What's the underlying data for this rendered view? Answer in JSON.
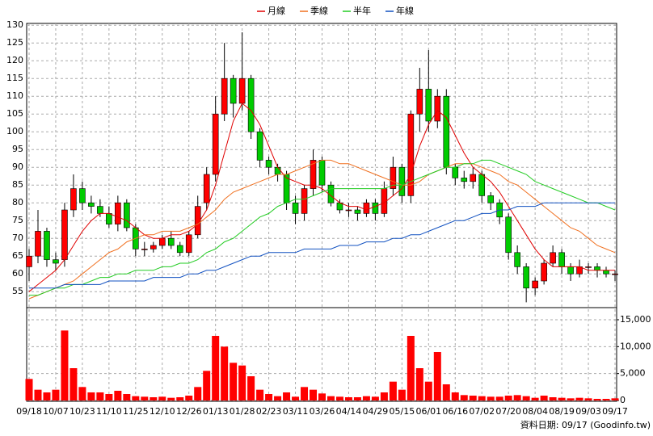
{
  "chart_data": {
    "type": "candlestick",
    "categories": [
      "09/18",
      null,
      null,
      "10/07",
      null,
      null,
      "10/23",
      null,
      null,
      "11/10",
      null,
      null,
      "11/25",
      null,
      null,
      "12/10",
      null,
      null,
      "12/26",
      null,
      null,
      "01/13",
      null,
      null,
      "01/28",
      null,
      null,
      "02/23",
      null,
      null,
      "03/11",
      null,
      null,
      "03/26",
      null,
      null,
      "04/14",
      null,
      null,
      "04/29",
      null,
      null,
      "05/15",
      null,
      null,
      "06/01",
      null,
      null,
      "06/16",
      null,
      null,
      "07/02",
      null,
      null,
      "07/20",
      null,
      null,
      "08/04",
      null,
      null,
      "08/19",
      null,
      null,
      "09/03",
      null,
      null,
      "09/17"
    ],
    "open": [
      62,
      65,
      72,
      64,
      64,
      78,
      84,
      80,
      79,
      77,
      74,
      80,
      73,
      67,
      67,
      68,
      70,
      68,
      66,
      71,
      80,
      88,
      105,
      115,
      108,
      115,
      100,
      92,
      90,
      88,
      80,
      77,
      84,
      92,
      85,
      80,
      78,
      78,
      77,
      80,
      77,
      84,
      90,
      82,
      105,
      112,
      103,
      110,
      90,
      87,
      86,
      88,
      82,
      80,
      76,
      66,
      62,
      56,
      58,
      63,
      66,
      62,
      60,
      62,
      62,
      61,
      60
    ],
    "high": [
      67,
      78,
      73,
      66,
      80,
      88,
      86,
      82,
      81,
      79,
      82,
      81,
      74,
      69,
      69,
      71,
      72,
      69,
      72,
      82,
      90,
      110,
      125,
      116,
      128,
      116,
      101,
      93,
      91,
      89,
      82,
      85,
      95,
      93,
      86,
      81,
      80,
      79,
      81,
      81,
      86,
      93,
      91,
      106,
      118,
      123,
      112,
      112,
      91,
      89,
      90,
      89,
      83,
      81,
      77,
      68,
      63,
      59,
      64,
      68,
      67,
      63,
      64,
      63,
      63,
      62,
      61
    ],
    "low": [
      58,
      63,
      62,
      61,
      62,
      76,
      78,
      77,
      76,
      73,
      72,
      72,
      65,
      65,
      66,
      67,
      67,
      65,
      65,
      70,
      78,
      86,
      103,
      104,
      106,
      98,
      90,
      88,
      86,
      78,
      74,
      75,
      82,
      83,
      79,
      77,
      76,
      75,
      76,
      75,
      76,
      82,
      80,
      80,
      100,
      100,
      101,
      88,
      85,
      84,
      84,
      80,
      78,
      74,
      64,
      60,
      52,
      54,
      57,
      62,
      60,
      58,
      59,
      60,
      59,
      59,
      58
    ],
    "close": [
      65,
      72,
      64,
      63,
      78,
      84,
      80,
      79,
      77,
      74,
      80,
      73,
      67,
      67,
      68,
      70,
      68,
      66,
      71,
      79,
      88,
      105,
      115,
      108,
      115,
      100,
      92,
      90,
      88,
      80,
      77,
      84,
      92,
      85,
      80,
      78,
      78,
      77,
      80,
      77,
      84,
      90,
      82,
      105,
      112,
      103,
      110,
      90,
      87,
      86,
      88,
      82,
      80,
      76,
      66,
      62,
      56,
      58,
      63,
      66,
      62,
      60,
      62,
      62,
      61,
      60,
      60
    ],
    "up_color": "#ff0000",
    "down_color": "#00cc00",
    "series": [
      {
        "name": "月線",
        "color": "#e00000",
        "values": [
          55,
          57,
          59,
          61,
          64,
          68,
          72,
          75,
          77,
          77,
          76,
          75,
          73,
          71,
          70,
          70,
          71,
          71,
          72,
          74,
          78,
          85,
          94,
          103,
          108,
          106,
          102,
          96,
          90,
          87,
          86,
          85,
          85,
          84,
          82,
          80,
          79,
          79,
          78,
          79,
          80,
          82,
          84,
          88,
          96,
          102,
          106,
          104,
          99,
          94,
          90,
          88,
          86,
          83,
          79,
          75,
          71,
          67,
          64,
          62,
          62,
          62,
          62,
          61,
          61,
          61,
          61
        ]
      },
      {
        "name": "季線",
        "color": "#f07020",
        "values": [
          53,
          54,
          55,
          56,
          57,
          58,
          60,
          62,
          64,
          66,
          67,
          69,
          70,
          71,
          71,
          72,
          72,
          72,
          73,
          74,
          76,
          78,
          81,
          83,
          84,
          85,
          86,
          87,
          88,
          88,
          89,
          90,
          91,
          92,
          92,
          91,
          91,
          90,
          89,
          88,
          87,
          86,
          85,
          85,
          86,
          88,
          89,
          90,
          91,
          91,
          91,
          90,
          89,
          88,
          86,
          85,
          83,
          81,
          79,
          77,
          75,
          73,
          72,
          70,
          68,
          67,
          66
        ]
      },
      {
        "name": "半年",
        "color": "#22cc22",
        "values": [
          54,
          54,
          55,
          56,
          56,
          57,
          57,
          58,
          59,
          59,
          60,
          60,
          61,
          61,
          61,
          62,
          62,
          63,
          63,
          64,
          66,
          67,
          69,
          70,
          72,
          74,
          76,
          77,
          79,
          80,
          81,
          81,
          82,
          83,
          84,
          84,
          84,
          84,
          84,
          84,
          84,
          85,
          85,
          86,
          87,
          88,
          89,
          90,
          90,
          91,
          91,
          92,
          92,
          91,
          90,
          89,
          88,
          86,
          85,
          84,
          83,
          82,
          81,
          80,
          80,
          79,
          78
        ]
      },
      {
        "name": "年線",
        "color": "#1050c0",
        "values": [
          56,
          56,
          56,
          56,
          57,
          57,
          57,
          57,
          57,
          58,
          58,
          58,
          58,
          58,
          59,
          59,
          59,
          59,
          60,
          60,
          61,
          61,
          62,
          63,
          64,
          65,
          65,
          66,
          66,
          66,
          66,
          67,
          67,
          67,
          67,
          68,
          68,
          68,
          69,
          69,
          69,
          70,
          70,
          71,
          71,
          72,
          73,
          74,
          75,
          75,
          76,
          77,
          77,
          78,
          78,
          79,
          79,
          79,
          80,
          80,
          80,
          80,
          80,
          80,
          80,
          80,
          80
        ]
      }
    ],
    "ylim": [
      50.5,
      130.5
    ],
    "yticks": [
      55,
      60,
      65,
      70,
      75,
      80,
      85,
      90,
      95,
      100,
      105,
      110,
      115,
      120,
      125,
      130
    ],
    "grid": true,
    "volume": {
      "color": "#ff0000",
      "values": [
        4000,
        2000,
        1500,
        2000,
        13000,
        6000,
        2500,
        1500,
        1500,
        1200,
        1800,
        1200,
        800,
        700,
        600,
        700,
        500,
        600,
        900,
        2500,
        5500,
        12000,
        10000,
        7000,
        6500,
        4500,
        2000,
        1200,
        800,
        1500,
        700,
        2500,
        2000,
        1300,
        800,
        700,
        600,
        600,
        800,
        700,
        1500,
        3500,
        2000,
        12000,
        6000,
        3500,
        9000,
        3000,
        1500,
        1000,
        900,
        800,
        700,
        700,
        900,
        1000,
        800,
        500,
        900,
        600,
        500,
        400,
        500,
        400,
        300,
        300,
        400
      ],
      "ylim": [
        0,
        17250
      ],
      "yticks": [
        0,
        {
          "value": 5000,
          "label": "5,000"
        },
        {
          "value": 10000,
          "label": "10,000"
        },
        {
          "value": 15000,
          "label": "15,000"
        }
      ]
    },
    "footer": "資料日期: 09/17 (Goodinfo.tw)"
  }
}
